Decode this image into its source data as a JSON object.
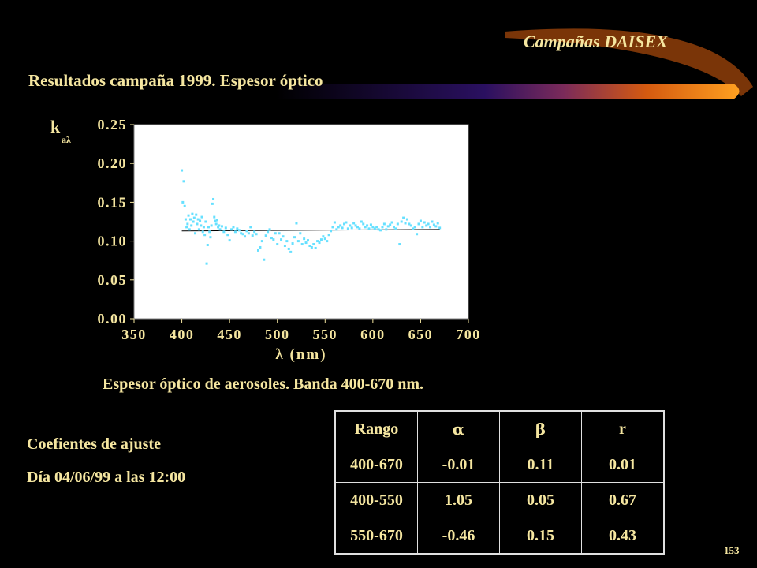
{
  "header": {
    "brand": "Campañas DAISEX",
    "title": "Resultados campaña 1999. Espesor óptico"
  },
  "caption": "Espesor óptico de aerosoles. Banda 400-670 nm.",
  "coefficients": {
    "line1": "Coefientes de ajuste",
    "line2": "Día 04/06/99 a las 12:00"
  },
  "table": {
    "headers": [
      "Rango",
      "α",
      "β",
      "r"
    ],
    "rows": [
      [
        "400-670",
        "-0.01",
        "0.11",
        "0.01"
      ],
      [
        "400-550",
        "1.05",
        "0.05",
        "0.67"
      ],
      [
        "550-670",
        "-0.46",
        "0.15",
        "0.43"
      ]
    ]
  },
  "page_number": "153",
  "colors": {
    "text": "#f5e6a0",
    "points": "#66e0ff",
    "fit_line": "#ffffff",
    "plot_bg": "#ffffff"
  },
  "chart_data": {
    "type": "scatter",
    "ylabel_main": "k",
    "ylabel_sub": "aλ",
    "xlabel": "λ (nm)",
    "xlim": [
      350,
      700
    ],
    "ylim": [
      0,
      0.25
    ],
    "xticks": [
      "350",
      "400",
      "450",
      "500",
      "550",
      "600",
      "650",
      "700"
    ],
    "yticks": [
      "0.00",
      "0.05",
      "0.10",
      "0.15",
      "0.20",
      "0.25"
    ],
    "grid": false,
    "fit_line": {
      "x": [
        400,
        670
      ],
      "y": [
        0.113,
        0.115
      ]
    },
    "series": [
      {
        "x": [
          400,
          401,
          402,
          403,
          404,
          405,
          406,
          407,
          408,
          409,
          410,
          411,
          412,
          413,
          414,
          415,
          416,
          417,
          418,
          419,
          420,
          421,
          422,
          423,
          424,
          425,
          426,
          427,
          428,
          429,
          430,
          431,
          432,
          433,
          434,
          435,
          436,
          437,
          438,
          439,
          440,
          442,
          444,
          446,
          448,
          450,
          452,
          454,
          456,
          458,
          460,
          462,
          464,
          466,
          468,
          470,
          472,
          474,
          476,
          478,
          480,
          482,
          484,
          486,
          488,
          490,
          492,
          494,
          496,
          498,
          500,
          502,
          504,
          506,
          508,
          510,
          512,
          514,
          516,
          518,
          520,
          522,
          524,
          526,
          528,
          530,
          532,
          534,
          536,
          538,
          540,
          542,
          544,
          546,
          548,
          550,
          552,
          554,
          556,
          558,
          560,
          562,
          564,
          566,
          568,
          570,
          572,
          574,
          576,
          578,
          580,
          582,
          584,
          586,
          588,
          590,
          592,
          594,
          596,
          598,
          600,
          602,
          604,
          606,
          608,
          610,
          612,
          614,
          616,
          618,
          620,
          622,
          624,
          626,
          628,
          630,
          632,
          634,
          636,
          638,
          640,
          642,
          644,
          646,
          648,
          650,
          652,
          654,
          656,
          658,
          660,
          662,
          664,
          666,
          668,
          670
        ],
        "y": [
          0.191,
          0.15,
          0.177,
          0.145,
          0.128,
          0.118,
          0.122,
          0.133,
          0.115,
          0.128,
          0.12,
          0.135,
          0.125,
          0.13,
          0.11,
          0.134,
          0.122,
          0.128,
          0.115,
          0.126,
          0.12,
          0.131,
          0.112,
          0.118,
          0.108,
          0.125,
          0.071,
          0.095,
          0.118,
          0.112,
          0.105,
          0.12,
          0.148,
          0.154,
          0.131,
          0.126,
          0.122,
          0.127,
          0.118,
          0.12,
          0.115,
          0.119,
          0.112,
          0.117,
          0.108,
          0.101,
          0.115,
          0.118,
          0.112,
          0.116,
          0.114,
          0.11,
          0.109,
          0.106,
          0.113,
          0.11,
          0.118,
          0.107,
          0.112,
          0.109,
          0.088,
          0.092,
          0.1,
          0.076,
          0.107,
          0.112,
          0.115,
          0.104,
          0.102,
          0.11,
          0.096,
          0.11,
          0.102,
          0.106,
          0.094,
          0.1,
          0.09,
          0.086,
          0.097,
          0.105,
          0.123,
          0.1,
          0.11,
          0.096,
          0.103,
          0.098,
          0.101,
          0.094,
          0.092,
          0.096,
          0.091,
          0.1,
          0.098,
          0.102,
          0.106,
          0.103,
          0.1,
          0.108,
          0.113,
          0.118,
          0.124,
          0.115,
          0.118,
          0.12,
          0.117,
          0.122,
          0.124,
          0.116,
          0.12,
          0.117,
          0.123,
          0.12,
          0.118,
          0.116,
          0.125,
          0.122,
          0.118,
          0.12,
          0.116,
          0.121,
          0.118,
          0.116,
          0.118,
          0.115,
          0.114,
          0.118,
          0.122,
          0.115,
          0.119,
          0.121,
          0.124,
          0.118,
          0.116,
          0.122,
          0.096,
          0.125,
          0.13,
          0.123,
          0.128,
          0.122,
          0.12,
          0.116,
          0.118,
          0.109,
          0.122,
          0.126,
          0.118,
          0.124,
          0.12,
          0.122,
          0.118,
          0.125,
          0.121,
          0.119,
          0.123,
          0.117
        ]
      }
    ]
  }
}
